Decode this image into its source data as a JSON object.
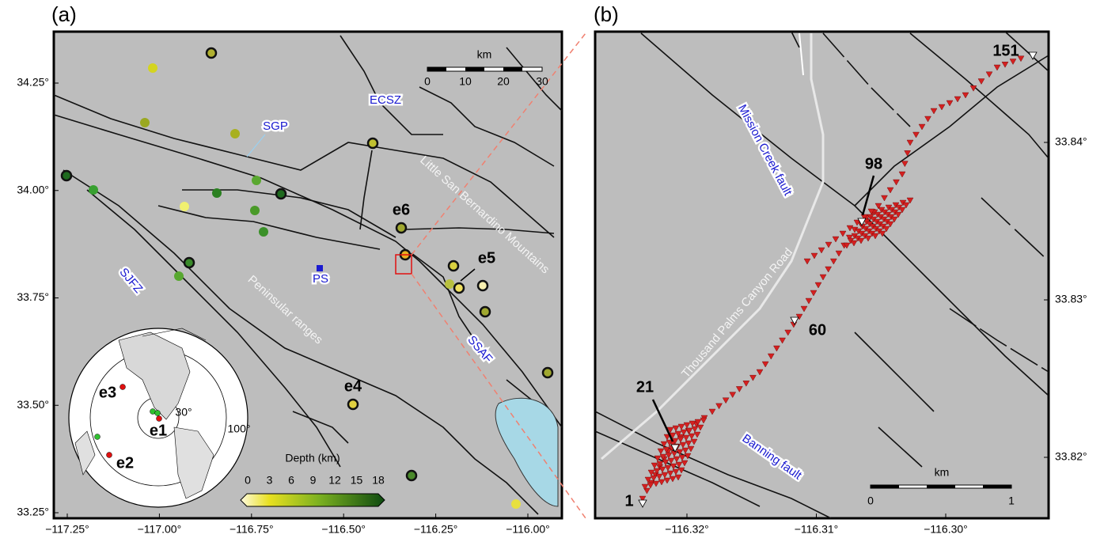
{
  "panel_a": {
    "label": "(a)",
    "xticks": [
      "−117.25°",
      "−117.00°",
      "−116.75°",
      "−116.50°",
      "−116.25°",
      "−116.00°"
    ],
    "yticks": [
      "34.25°",
      "34.00°",
      "33.75°",
      "33.50°",
      "33.25°"
    ],
    "regions": {
      "ecsz": "ECSZ",
      "sgp": "SGP",
      "sjfz": "SJFZ",
      "ps": "PS",
      "ssaf": "SSAF"
    },
    "ranges": {
      "lsbm": "Little San Bernardino Mountains",
      "peninsular": "Peninsular ranges"
    },
    "events": {
      "e6": "e6",
      "e5": "e5",
      "e4": "e4"
    },
    "scale_bar": {
      "title": "km",
      "ticks": [
        "0",
        "10",
        "20",
        "30"
      ]
    },
    "colorbar": {
      "title": "Depth (km)",
      "ticks": [
        "0",
        "3",
        "6",
        "9",
        "12",
        "15",
        "18"
      ]
    },
    "inset": {
      "events": {
        "e3": "e3",
        "e1": "e1",
        "e2": "e2"
      },
      "rings": {
        "inner": "30°",
        "outer": "100°"
      }
    }
  },
  "panel_b": {
    "label": "(b)",
    "xticks": [
      "−116.32°",
      "−116.31°",
      "−116.30°"
    ],
    "yticks": [
      "33.84°",
      "33.83°",
      "33.82°"
    ],
    "stations": {
      "s151": "151",
      "s98": "98",
      "s60": "60",
      "s21": "21",
      "s1": "1"
    },
    "faults": {
      "mission": "Mission Creek fault",
      "banning": "Banning fault"
    },
    "road": "Thousand Palms Canyon Road",
    "scale_bar": {
      "title": "km",
      "ticks": [
        "0",
        "1"
      ]
    }
  }
}
